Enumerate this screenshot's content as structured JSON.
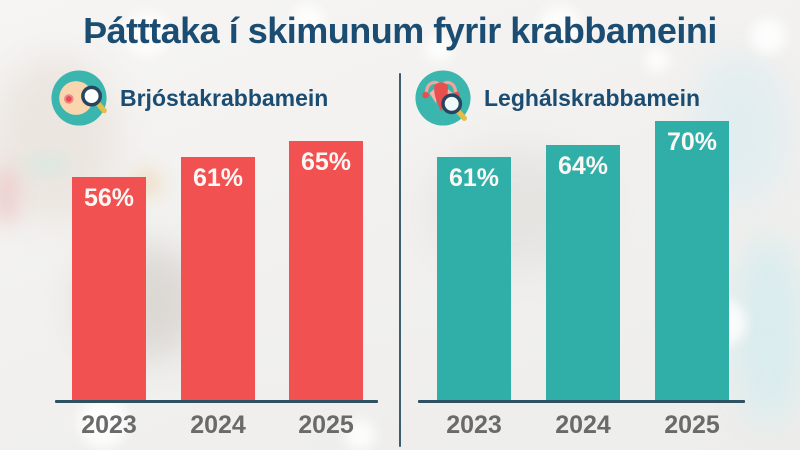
{
  "title": {
    "text": "Þátttaka í skimunum fyrir krabbameini"
  },
  "colors": {
    "title": "#1b4c72",
    "chart_label": "#1b4c72",
    "year_label": "#6a6a6a",
    "value_label": "#fbf7f4",
    "axis": "#2f5262",
    "divider": "#3d5e6d",
    "bars_left": "#f25151",
    "bars_right": "#2fafa8",
    "icon_circle": "#3ab6ae"
  },
  "charts": [
    {
      "label": "Brjóstakrabbamein",
      "icon": "breast-screening-icon"
    },
    {
      "label": "Leghálskrabbamein",
      "icon": "cervical-screening-icon"
    }
  ],
  "chart_data": [
    {
      "type": "bar",
      "title": "Brjóstakrabbamein",
      "categories": [
        "2023",
        "2024",
        "2025"
      ],
      "values": [
        56,
        61,
        65
      ],
      "value_labels": [
        "56%",
        "61%",
        "65%"
      ],
      "unit": "%",
      "bar_color": "#f25151",
      "xlabel": "",
      "ylabel": "",
      "ylim": [
        0,
        100
      ],
      "grid": false,
      "legend": "none"
    },
    {
      "type": "bar",
      "title": "Leghálskrabbamein",
      "categories": [
        "2023",
        "2024",
        "2025"
      ],
      "values": [
        61,
        64,
        70
      ],
      "value_labels": [
        "61%",
        "64%",
        "70%"
      ],
      "unit": "%",
      "bar_color": "#2fafa8",
      "xlabel": "",
      "ylabel": "",
      "ylim": [
        0,
        100
      ],
      "grid": false,
      "legend": "none"
    }
  ]
}
